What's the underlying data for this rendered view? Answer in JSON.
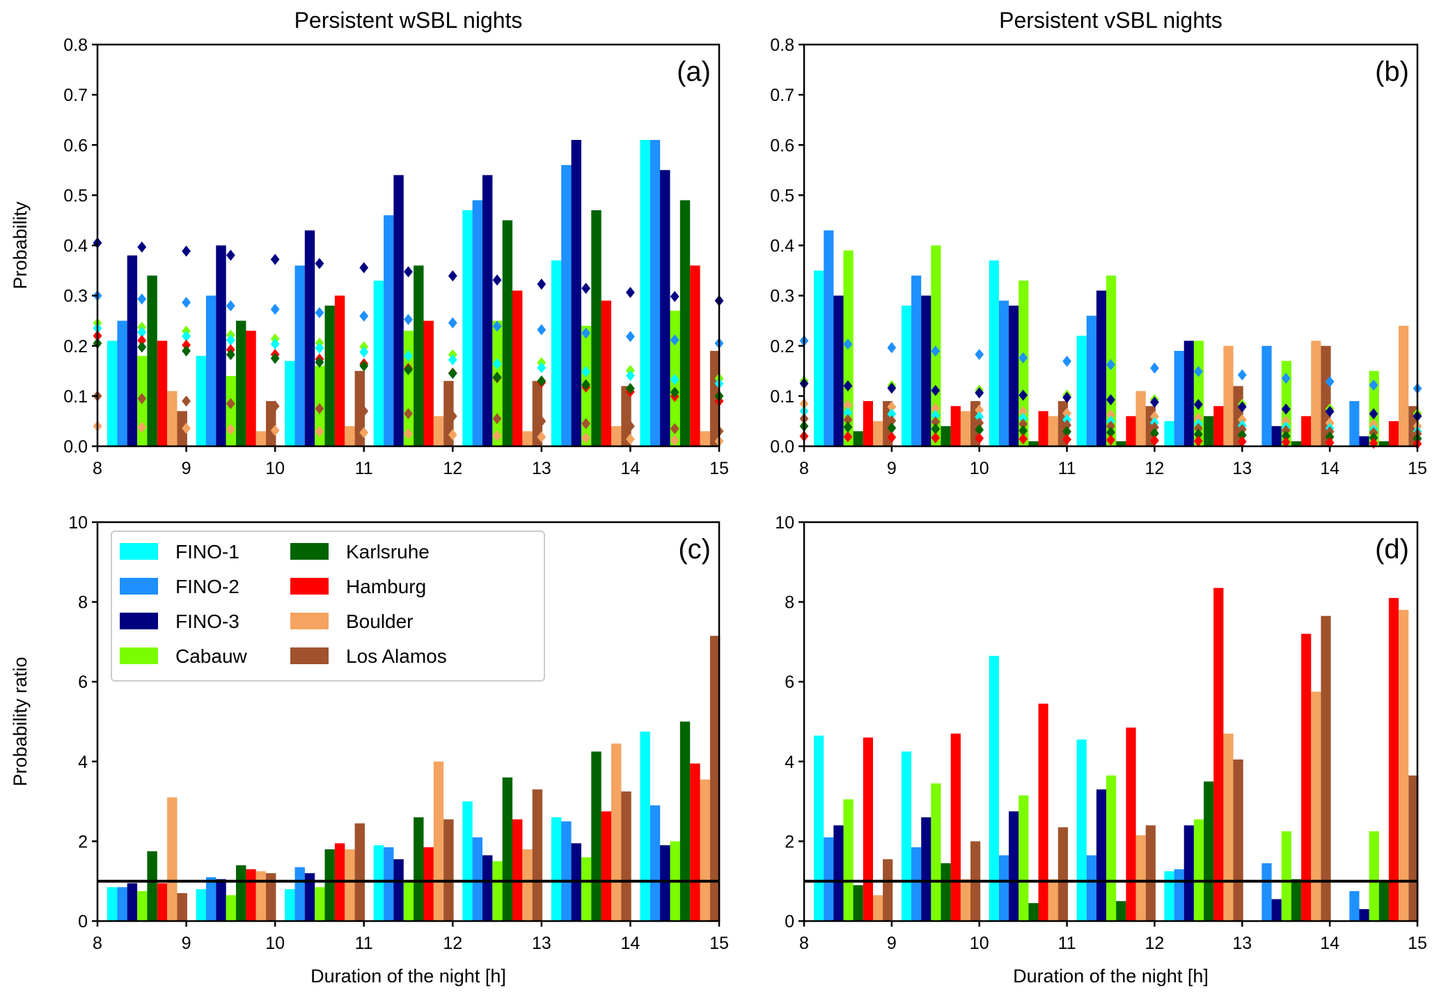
{
  "figure": {
    "stations": [
      {
        "name": "FINO-1",
        "color": "#00FFFF"
      },
      {
        "name": "FINO-2",
        "color": "#1E90FF"
      },
      {
        "name": "FINO-3",
        "color": "#000080"
      },
      {
        "name": "Cabauw",
        "color": "#7CFC00"
      },
      {
        "name": "Karlsruhe",
        "color": "#006400"
      },
      {
        "name": "Hamburg",
        "color": "#FF0000"
      },
      {
        "name": "Boulder",
        "color": "#F4A460"
      },
      {
        "name": "Los Alamos",
        "color": "#A0522D"
      }
    ],
    "reference_line": 1,
    "reference_color": "#000000"
  },
  "chart_data": [
    {
      "panel": "(a)",
      "type": "bar",
      "title": "Persistent wSBL nights",
      "xlabel": "",
      "ylabel": "Probability",
      "xlim": [
        8,
        15
      ],
      "ylim": [
        0,
        0.8
      ],
      "xticks": [
        "8",
        "9",
        "10",
        "11",
        "12",
        "13",
        "14",
        "15"
      ],
      "yticks": [
        "0.0",
        "0.1",
        "0.2",
        "0.3",
        "0.4",
        "0.5",
        "0.6",
        "0.7",
        "0.8"
      ],
      "categories": [
        8,
        9,
        10,
        11,
        12,
        13,
        14
      ],
      "series": [
        {
          "name": "FINO-1",
          "values": [
            0.21,
            0.18,
            0.17,
            0.33,
            0.47,
            0.37,
            0.61
          ]
        },
        {
          "name": "FINO-2",
          "values": [
            0.25,
            0.3,
            0.36,
            0.46,
            0.49,
            0.56,
            0.61
          ]
        },
        {
          "name": "FINO-3",
          "values": [
            0.38,
            0.4,
            0.43,
            0.54,
            0.54,
            0.61,
            0.55
          ]
        },
        {
          "name": "Cabauw",
          "values": [
            0.18,
            0.14,
            0.16,
            0.23,
            0.25,
            0.24,
            0.27
          ]
        },
        {
          "name": "Karlsruhe",
          "values": [
            0.34,
            0.25,
            0.28,
            0.36,
            0.45,
            0.47,
            0.49
          ]
        },
        {
          "name": "Hamburg",
          "values": [
            0.21,
            0.23,
            0.3,
            0.25,
            0.31,
            0.29,
            0.36
          ]
        },
        {
          "name": "Boulder",
          "values": [
            0.11,
            0.03,
            0.04,
            0.06,
            0.03,
            0.04,
            0.03
          ]
        },
        {
          "name": "Los Alamos",
          "values": [
            0.07,
            0.09,
            0.15,
            0.13,
            0.13,
            0.12,
            0.19
          ]
        }
      ],
      "expected_lines": [
        {
          "name": "FINO-3",
          "start": 0.405,
          "end": 0.29
        },
        {
          "name": "FINO-2",
          "start": 0.3,
          "end": 0.205
        },
        {
          "name": "Cabauw",
          "start": 0.245,
          "end": 0.135
        },
        {
          "name": "FINO-1",
          "start": 0.235,
          "end": 0.125
        },
        {
          "name": "Hamburg",
          "start": 0.22,
          "end": 0.09
        },
        {
          "name": "Karlsruhe",
          "start": 0.205,
          "end": 0.1
        },
        {
          "name": "Los Alamos",
          "start": 0.1,
          "end": 0.03
        },
        {
          "name": "Boulder",
          "start": 0.04,
          "end": 0.01
        }
      ],
      "legend": "none"
    },
    {
      "panel": "(b)",
      "type": "bar",
      "title": "Persistent vSBL nights",
      "xlabel": "",
      "ylabel": "",
      "xlim": [
        8,
        15
      ],
      "ylim": [
        0,
        0.8
      ],
      "xticks": [
        "8",
        "9",
        "10",
        "11",
        "12",
        "13",
        "14",
        "15"
      ],
      "yticks": [
        "0.0",
        "0.1",
        "0.2",
        "0.3",
        "0.4",
        "0.5",
        "0.6",
        "0.7",
        "0.8"
      ],
      "categories": [
        8,
        9,
        10,
        11,
        12,
        13,
        14
      ],
      "series": [
        {
          "name": "FINO-1",
          "values": [
            0.35,
            0.28,
            0.37,
            0.22,
            0.05,
            0.0,
            0.0
          ]
        },
        {
          "name": "FINO-2",
          "values": [
            0.43,
            0.34,
            0.29,
            0.26,
            0.19,
            0.2,
            0.09
          ]
        },
        {
          "name": "FINO-3",
          "values": [
            0.3,
            0.3,
            0.28,
            0.31,
            0.21,
            0.04,
            0.02
          ]
        },
        {
          "name": "Cabauw",
          "values": [
            0.39,
            0.4,
            0.33,
            0.34,
            0.21,
            0.17,
            0.15
          ]
        },
        {
          "name": "Karlsruhe",
          "values": [
            0.03,
            0.04,
            0.01,
            0.01,
            0.06,
            0.01,
            0.01
          ]
        },
        {
          "name": "Hamburg",
          "values": [
            0.09,
            0.08,
            0.07,
            0.06,
            0.08,
            0.06,
            0.05
          ]
        },
        {
          "name": "Boulder",
          "values": [
            0.05,
            0.07,
            0.06,
            0.11,
            0.2,
            0.21,
            0.24
          ]
        },
        {
          "name": "Los Alamos",
          "values": [
            0.09,
            0.09,
            0.09,
            0.08,
            0.12,
            0.2,
            0.08
          ]
        }
      ],
      "expected_lines": [
        {
          "name": "FINO-2",
          "start": 0.21,
          "end": 0.115
        },
        {
          "name": "Cabauw",
          "start": 0.13,
          "end": 0.065
        },
        {
          "name": "FINO-3",
          "start": 0.125,
          "end": 0.06
        },
        {
          "name": "Boulder",
          "start": 0.085,
          "end": 0.04
        },
        {
          "name": "FINO-1",
          "start": 0.07,
          "end": 0.03
        },
        {
          "name": "Los Alamos",
          "start": 0.055,
          "end": 0.025
        },
        {
          "name": "Karlsruhe",
          "start": 0.04,
          "end": 0.015
        },
        {
          "name": "Hamburg",
          "start": 0.02,
          "end": 0.005
        }
      ],
      "legend": "none"
    },
    {
      "panel": "(c)",
      "type": "bar",
      "title": "",
      "xlabel": "Duration of the night [h]",
      "ylabel": "Probability ratio",
      "xlim": [
        8,
        15
      ],
      "ylim": [
        0,
        10
      ],
      "xticks": [
        "8",
        "9",
        "10",
        "11",
        "12",
        "13",
        "14",
        "15"
      ],
      "yticks": [
        "0",
        "2",
        "4",
        "6",
        "8",
        "10"
      ],
      "categories": [
        8,
        9,
        10,
        11,
        12,
        13,
        14
      ],
      "series": [
        {
          "name": "FINO-1",
          "values": [
            0.85,
            0.8,
            0.8,
            1.9,
            3.0,
            2.6,
            4.75
          ]
        },
        {
          "name": "FINO-2",
          "values": [
            0.85,
            1.1,
            1.35,
            1.85,
            2.1,
            2.5,
            2.9
          ]
        },
        {
          "name": "FINO-3",
          "values": [
            0.95,
            1.05,
            1.2,
            1.55,
            1.65,
            1.95,
            1.9
          ]
        },
        {
          "name": "Cabauw",
          "values": [
            0.75,
            0.65,
            0.85,
            1.0,
            1.5,
            1.6,
            2.0
          ]
        },
        {
          "name": "Karlsruhe",
          "values": [
            1.75,
            1.4,
            1.8,
            2.6,
            3.6,
            4.25,
            5.0
          ]
        },
        {
          "name": "Hamburg",
          "values": [
            0.95,
            1.3,
            1.95,
            1.85,
            2.55,
            2.75,
            3.95
          ]
        },
        {
          "name": "Boulder",
          "values": [
            3.1,
            1.25,
            1.8,
            4.0,
            1.8,
            4.45,
            3.55
          ]
        },
        {
          "name": "Los Alamos",
          "values": [
            0.7,
            1.2,
            2.45,
            2.55,
            3.3,
            3.25,
            7.15
          ]
        }
      ],
      "legend": "top-left",
      "legend_columns": 2
    },
    {
      "panel": "(d)",
      "type": "bar",
      "title": "",
      "xlabel": "Duration of the night [h]",
      "ylabel": "",
      "xlim": [
        8,
        15
      ],
      "ylim": [
        0,
        10
      ],
      "xticks": [
        "8",
        "9",
        "10",
        "11",
        "12",
        "13",
        "14",
        "15"
      ],
      "yticks": [
        "0",
        "2",
        "4",
        "6",
        "8",
        "10"
      ],
      "categories": [
        8,
        9,
        10,
        11,
        12,
        13,
        14
      ],
      "series": [
        {
          "name": "FINO-1",
          "values": [
            4.65,
            4.25,
            6.65,
            4.55,
            1.25,
            0,
            0
          ]
        },
        {
          "name": "FINO-2",
          "values": [
            2.1,
            1.85,
            1.65,
            1.65,
            1.3,
            1.45,
            0.75
          ]
        },
        {
          "name": "FINO-3",
          "values": [
            2.4,
            2.6,
            2.75,
            3.3,
            2.4,
            0.55,
            0.3
          ]
        },
        {
          "name": "Cabauw",
          "values": [
            3.05,
            3.45,
            3.15,
            3.65,
            2.55,
            2.25,
            2.25
          ]
        },
        {
          "name": "Karlsruhe",
          "values": [
            0.9,
            1.45,
            0.45,
            0.5,
            3.5,
            1.05,
            1.0
          ]
        },
        {
          "name": "Hamburg",
          "values": [
            4.6,
            4.7,
            5.45,
            4.85,
            8.35,
            7.2,
            8.1
          ]
        },
        {
          "name": "Boulder",
          "values": [
            0.65,
            1.05,
            1.05,
            2.15,
            4.7,
            5.75,
            7.8
          ]
        },
        {
          "name": "Los Alamos",
          "values": [
            1.55,
            2.0,
            2.35,
            2.4,
            4.05,
            7.65,
            3.65
          ]
        }
      ],
      "legend": "none"
    }
  ]
}
